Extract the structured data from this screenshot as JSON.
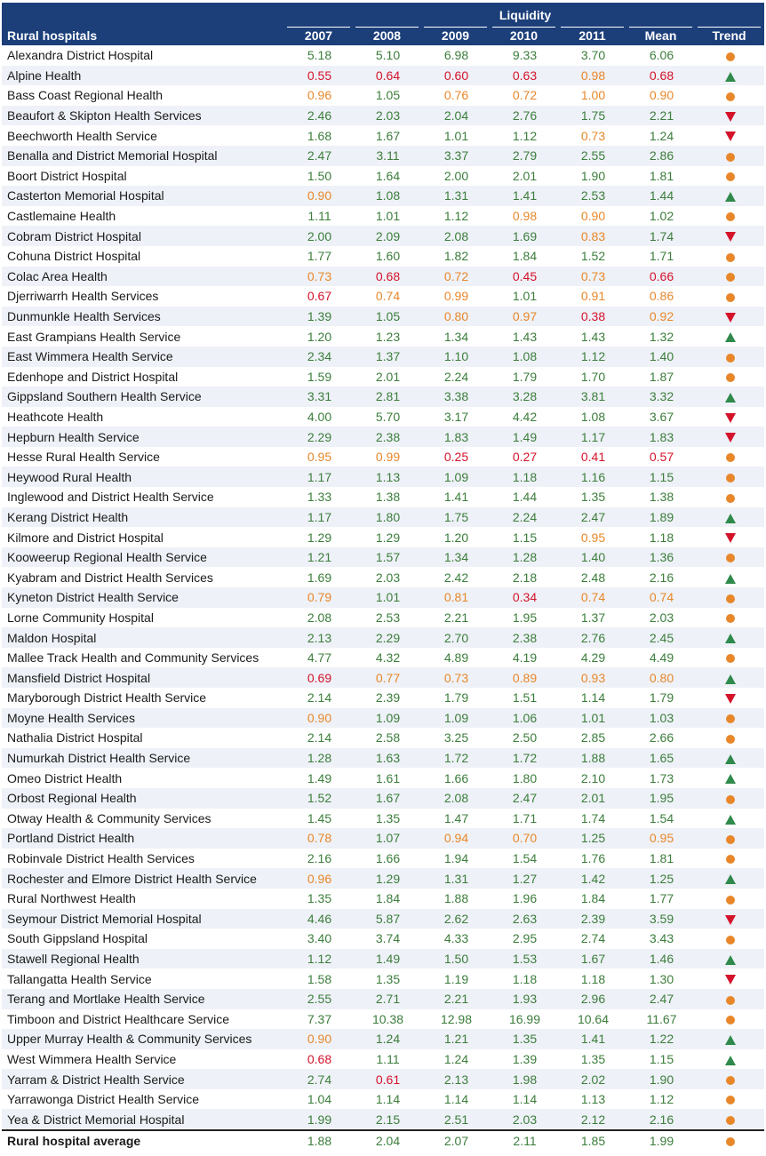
{
  "table": {
    "group_header": "Liquidity",
    "columns": [
      "Rural hospitals",
      "2007",
      "2008",
      "2009",
      "2010",
      "2011",
      "Mean",
      "Trend"
    ],
    "colors": {
      "green": "#3b7d3b",
      "orange": "#e8872a",
      "red": "#d4132b",
      "header_bg": "#1c3f7a"
    },
    "rows": [
      {
        "name": "Alexandra District Hospital",
        "values": [
          "5.18",
          "5.10",
          "6.98",
          "9.33",
          "3.70",
          "6.06"
        ],
        "colors": [
          "g",
          "g",
          "g",
          "g",
          "g",
          "g"
        ],
        "trend": "dot"
      },
      {
        "name": "Alpine Health",
        "values": [
          "0.55",
          "0.64",
          "0.60",
          "0.63",
          "0.98",
          "0.68"
        ],
        "colors": [
          "r",
          "r",
          "r",
          "r",
          "o",
          "r"
        ],
        "trend": "up"
      },
      {
        "name": "Bass Coast Regional Health",
        "values": [
          "0.96",
          "1.05",
          "0.76",
          "0.72",
          "1.00",
          "0.90"
        ],
        "colors": [
          "o",
          "g",
          "o",
          "o",
          "o",
          "o"
        ],
        "trend": "dot"
      },
      {
        "name": "Beaufort & Skipton Health Services",
        "values": [
          "2.46",
          "2.03",
          "2.04",
          "2.76",
          "1.75",
          "2.21"
        ],
        "colors": [
          "g",
          "g",
          "g",
          "g",
          "g",
          "g"
        ],
        "trend": "down"
      },
      {
        "name": "Beechworth Health Service",
        "values": [
          "1.68",
          "1.67",
          "1.01",
          "1.12",
          "0.73",
          "1.24"
        ],
        "colors": [
          "g",
          "g",
          "g",
          "g",
          "o",
          "g"
        ],
        "trend": "down"
      },
      {
        "name": "Benalla and District Memorial Hospital",
        "values": [
          "2.47",
          "3.11",
          "3.37",
          "2.79",
          "2.55",
          "2.86"
        ],
        "colors": [
          "g",
          "g",
          "g",
          "g",
          "g",
          "g"
        ],
        "trend": "dot"
      },
      {
        "name": "Boort District Hospital",
        "values": [
          "1.50",
          "1.64",
          "2.00",
          "2.01",
          "1.90",
          "1.81"
        ],
        "colors": [
          "g",
          "g",
          "g",
          "g",
          "g",
          "g"
        ],
        "trend": "dot"
      },
      {
        "name": "Casterton Memorial Hospital",
        "values": [
          "0.90",
          "1.08",
          "1.31",
          "1.41",
          "2.53",
          "1.44"
        ],
        "colors": [
          "o",
          "g",
          "g",
          "g",
          "g",
          "g"
        ],
        "trend": "up"
      },
      {
        "name": "Castlemaine Health",
        "values": [
          "1.11",
          "1.01",
          "1.12",
          "0.98",
          "0.90",
          "1.02"
        ],
        "colors": [
          "g",
          "g",
          "g",
          "o",
          "o",
          "g"
        ],
        "trend": "dot"
      },
      {
        "name": "Cobram District Hospital",
        "values": [
          "2.00",
          "2.09",
          "2.08",
          "1.69",
          "0.83",
          "1.74"
        ],
        "colors": [
          "g",
          "g",
          "g",
          "g",
          "o",
          "g"
        ],
        "trend": "down"
      },
      {
        "name": "Cohuna District Hospital",
        "values": [
          "1.77",
          "1.60",
          "1.82",
          "1.84",
          "1.52",
          "1.71"
        ],
        "colors": [
          "g",
          "g",
          "g",
          "g",
          "g",
          "g"
        ],
        "trend": "dot"
      },
      {
        "name": "Colac Area Health",
        "values": [
          "0.73",
          "0.68",
          "0.72",
          "0.45",
          "0.73",
          "0.66"
        ],
        "colors": [
          "o",
          "r",
          "o",
          "r",
          "o",
          "r"
        ],
        "trend": "dot"
      },
      {
        "name": "Djerriwarrh Health Services",
        "values": [
          "0.67",
          "0.74",
          "0.99",
          "1.01",
          "0.91",
          "0.86"
        ],
        "colors": [
          "r",
          "o",
          "o",
          "g",
          "o",
          "o"
        ],
        "trend": "dot"
      },
      {
        "name": "Dunmunkle Health Services",
        "values": [
          "1.39",
          "1.05",
          "0.80",
          "0.97",
          "0.38",
          "0.92"
        ],
        "colors": [
          "g",
          "g",
          "o",
          "o",
          "r",
          "o"
        ],
        "trend": "down"
      },
      {
        "name": "East Grampians Health Service",
        "values": [
          "1.20",
          "1.23",
          "1.34",
          "1.43",
          "1.43",
          "1.32"
        ],
        "colors": [
          "g",
          "g",
          "g",
          "g",
          "g",
          "g"
        ],
        "trend": "up"
      },
      {
        "name": "East Wimmera Health Service",
        "values": [
          "2.34",
          "1.37",
          "1.10",
          "1.08",
          "1.12",
          "1.40"
        ],
        "colors": [
          "g",
          "g",
          "g",
          "g",
          "g",
          "g"
        ],
        "trend": "dot"
      },
      {
        "name": "Edenhope and District Hospital",
        "values": [
          "1.59",
          "2.01",
          "2.24",
          "1.79",
          "1.70",
          "1.87"
        ],
        "colors": [
          "g",
          "g",
          "g",
          "g",
          "g",
          "g"
        ],
        "trend": "dot"
      },
      {
        "name": "Gippsland Southern Health Service",
        "values": [
          "3.31",
          "2.81",
          "3.38",
          "3.28",
          "3.81",
          "3.32"
        ],
        "colors": [
          "g",
          "g",
          "g",
          "g",
          "g",
          "g"
        ],
        "trend": "up"
      },
      {
        "name": "Heathcote Health",
        "values": [
          "4.00",
          "5.70",
          "3.17",
          "4.42",
          "1.08",
          "3.67"
        ],
        "colors": [
          "g",
          "g",
          "g",
          "g",
          "g",
          "g"
        ],
        "trend": "down"
      },
      {
        "name": "Hepburn Health Service",
        "values": [
          "2.29",
          "2.38",
          "1.83",
          "1.49",
          "1.17",
          "1.83"
        ],
        "colors": [
          "g",
          "g",
          "g",
          "g",
          "g",
          "g"
        ],
        "trend": "down"
      },
      {
        "name": "Hesse Rural Health Service",
        "values": [
          "0.95",
          "0.99",
          "0.25",
          "0.27",
          "0.41",
          "0.57"
        ],
        "colors": [
          "o",
          "o",
          "r",
          "r",
          "r",
          "r"
        ],
        "trend": "dot"
      },
      {
        "name": "Heywood Rural Health",
        "values": [
          "1.17",
          "1.13",
          "1.09",
          "1.18",
          "1.16",
          "1.15"
        ],
        "colors": [
          "g",
          "g",
          "g",
          "g",
          "g",
          "g"
        ],
        "trend": "dot"
      },
      {
        "name": "Inglewood and District Health Service",
        "values": [
          "1.33",
          "1.38",
          "1.41",
          "1.44",
          "1.35",
          "1.38"
        ],
        "colors": [
          "g",
          "g",
          "g",
          "g",
          "g",
          "g"
        ],
        "trend": "dot"
      },
      {
        "name": "Kerang District Health",
        "values": [
          "1.17",
          "1.80",
          "1.75",
          "2.24",
          "2.47",
          "1.89"
        ],
        "colors": [
          "g",
          "g",
          "g",
          "g",
          "g",
          "g"
        ],
        "trend": "up"
      },
      {
        "name": "Kilmore and District Hospital",
        "values": [
          "1.29",
          "1.29",
          "1.20",
          "1.15",
          "0.95",
          "1.18"
        ],
        "colors": [
          "g",
          "g",
          "g",
          "g",
          "o",
          "g"
        ],
        "trend": "down"
      },
      {
        "name": "Kooweerup Regional Health Service",
        "values": [
          "1.21",
          "1.57",
          "1.34",
          "1.28",
          "1.40",
          "1.36"
        ],
        "colors": [
          "g",
          "g",
          "g",
          "g",
          "g",
          "g"
        ],
        "trend": "dot"
      },
      {
        "name": "Kyabram and District Health Services",
        "values": [
          "1.69",
          "2.03",
          "2.42",
          "2.18",
          "2.48",
          "2.16"
        ],
        "colors": [
          "g",
          "g",
          "g",
          "g",
          "g",
          "g"
        ],
        "trend": "up"
      },
      {
        "name": "Kyneton District Health Service",
        "values": [
          "0.79",
          "1.01",
          "0.81",
          "0.34",
          "0.74",
          "0.74"
        ],
        "colors": [
          "o",
          "g",
          "o",
          "r",
          "o",
          "o"
        ],
        "trend": "dot"
      },
      {
        "name": "Lorne Community Hospital",
        "values": [
          "2.08",
          "2.53",
          "2.21",
          "1.95",
          "1.37",
          "2.03"
        ],
        "colors": [
          "g",
          "g",
          "g",
          "g",
          "g",
          "g"
        ],
        "trend": "dot"
      },
      {
        "name": "Maldon Hospital",
        "values": [
          "2.13",
          "2.29",
          "2.70",
          "2.38",
          "2.76",
          "2.45"
        ],
        "colors": [
          "g",
          "g",
          "g",
          "g",
          "g",
          "g"
        ],
        "trend": "up"
      },
      {
        "name": "Mallee Track Health and Community Services",
        "values": [
          "4.77",
          "4.32",
          "4.89",
          "4.19",
          "4.29",
          "4.49"
        ],
        "colors": [
          "g",
          "g",
          "g",
          "g",
          "g",
          "g"
        ],
        "trend": "dot"
      },
      {
        "name": "Mansfield District Hospital",
        "values": [
          "0.69",
          "0.77",
          "0.73",
          "0.89",
          "0.93",
          "0.80"
        ],
        "colors": [
          "r",
          "o",
          "o",
          "o",
          "o",
          "o"
        ],
        "trend": "up"
      },
      {
        "name": "Maryborough District Health Service",
        "values": [
          "2.14",
          "2.39",
          "1.79",
          "1.51",
          "1.14",
          "1.79"
        ],
        "colors": [
          "g",
          "g",
          "g",
          "g",
          "g",
          "g"
        ],
        "trend": "down"
      },
      {
        "name": "Moyne Health Services",
        "values": [
          "0.90",
          "1.09",
          "1.09",
          "1.06",
          "1.01",
          "1.03"
        ],
        "colors": [
          "o",
          "g",
          "g",
          "g",
          "g",
          "g"
        ],
        "trend": "dot"
      },
      {
        "name": "Nathalia District Hospital",
        "values": [
          "2.14",
          "2.58",
          "3.25",
          "2.50",
          "2.85",
          "2.66"
        ],
        "colors": [
          "g",
          "g",
          "g",
          "g",
          "g",
          "g"
        ],
        "trend": "dot"
      },
      {
        "name": "Numurkah District Health Service",
        "values": [
          "1.28",
          "1.63",
          "1.72",
          "1.72",
          "1.88",
          "1.65"
        ],
        "colors": [
          "g",
          "g",
          "g",
          "g",
          "g",
          "g"
        ],
        "trend": "up"
      },
      {
        "name": "Omeo District Health",
        "values": [
          "1.49",
          "1.61",
          "1.66",
          "1.80",
          "2.10",
          "1.73"
        ],
        "colors": [
          "g",
          "g",
          "g",
          "g",
          "g",
          "g"
        ],
        "trend": "up"
      },
      {
        "name": "Orbost Regional Health",
        "values": [
          "1.52",
          "1.67",
          "2.08",
          "2.47",
          "2.01",
          "1.95"
        ],
        "colors": [
          "g",
          "g",
          "g",
          "g",
          "g",
          "g"
        ],
        "trend": "dot"
      },
      {
        "name": "Otway Health & Community Services",
        "values": [
          "1.45",
          "1.35",
          "1.47",
          "1.71",
          "1.74",
          "1.54"
        ],
        "colors": [
          "g",
          "g",
          "g",
          "g",
          "g",
          "g"
        ],
        "trend": "up"
      },
      {
        "name": "Portland District Health",
        "values": [
          "0.78",
          "1.07",
          "0.94",
          "0.70",
          "1.25",
          "0.95"
        ],
        "colors": [
          "o",
          "g",
          "o",
          "o",
          "g",
          "o"
        ],
        "trend": "dot"
      },
      {
        "name": "Robinvale District Health Services",
        "values": [
          "2.16",
          "1.66",
          "1.94",
          "1.54",
          "1.76",
          "1.81"
        ],
        "colors": [
          "g",
          "g",
          "g",
          "g",
          "g",
          "g"
        ],
        "trend": "dot"
      },
      {
        "name": "Rochester and Elmore District Health Service",
        "values": [
          "0.96",
          "1.29",
          "1.31",
          "1.27",
          "1.42",
          "1.25"
        ],
        "colors": [
          "o",
          "g",
          "g",
          "g",
          "g",
          "g"
        ],
        "trend": "up"
      },
      {
        "name": "Rural Northwest Health",
        "values": [
          "1.35",
          "1.84",
          "1.88",
          "1.96",
          "1.84",
          "1.77"
        ],
        "colors": [
          "g",
          "g",
          "g",
          "g",
          "g",
          "g"
        ],
        "trend": "dot"
      },
      {
        "name": "Seymour District Memorial Hospital",
        "values": [
          "4.46",
          "5.87",
          "2.62",
          "2.63",
          "2.39",
          "3.59"
        ],
        "colors": [
          "g",
          "g",
          "g",
          "g",
          "g",
          "g"
        ],
        "trend": "down"
      },
      {
        "name": "South Gippsland Hospital",
        "values": [
          "3.40",
          "3.74",
          "4.33",
          "2.95",
          "2.74",
          "3.43"
        ],
        "colors": [
          "g",
          "g",
          "g",
          "g",
          "g",
          "g"
        ],
        "trend": "dot"
      },
      {
        "name": "Stawell Regional Health",
        "values": [
          "1.12",
          "1.49",
          "1.50",
          "1.53",
          "1.67",
          "1.46"
        ],
        "colors": [
          "g",
          "g",
          "g",
          "g",
          "g",
          "g"
        ],
        "trend": "up"
      },
      {
        "name": "Tallangatta Health Service",
        "values": [
          "1.58",
          "1.35",
          "1.19",
          "1.18",
          "1.18",
          "1.30"
        ],
        "colors": [
          "g",
          "g",
          "g",
          "g",
          "g",
          "g"
        ],
        "trend": "down"
      },
      {
        "name": "Terang and Mortlake Health Service",
        "values": [
          "2.55",
          "2.71",
          "2.21",
          "1.93",
          "2.96",
          "2.47"
        ],
        "colors": [
          "g",
          "g",
          "g",
          "g",
          "g",
          "g"
        ],
        "trend": "dot"
      },
      {
        "name": "Timboon and District Healthcare Service",
        "values": [
          "7.37",
          "10.38",
          "12.98",
          "16.99",
          "10.64",
          "11.67"
        ],
        "colors": [
          "g",
          "g",
          "g",
          "g",
          "g",
          "g"
        ],
        "trend": "dot"
      },
      {
        "name": "Upper Murray Health & Community Services",
        "values": [
          "0.90",
          "1.24",
          "1.21",
          "1.35",
          "1.41",
          "1.22"
        ],
        "colors": [
          "o",
          "g",
          "g",
          "g",
          "g",
          "g"
        ],
        "trend": "up"
      },
      {
        "name": "West Wimmera Health Service",
        "values": [
          "0.68",
          "1.11",
          "1.24",
          "1.39",
          "1.35",
          "1.15"
        ],
        "colors": [
          "r",
          "g",
          "g",
          "g",
          "g",
          "g"
        ],
        "trend": "up"
      },
      {
        "name": "Yarram & District Health Service",
        "values": [
          "2.74",
          "0.61",
          "2.13",
          "1.98",
          "2.02",
          "1.90"
        ],
        "colors": [
          "g",
          "r",
          "g",
          "g",
          "g",
          "g"
        ],
        "trend": "dot"
      },
      {
        "name": "Yarrawonga District Health Service",
        "values": [
          "1.04",
          "1.14",
          "1.14",
          "1.14",
          "1.13",
          "1.12"
        ],
        "colors": [
          "g",
          "g",
          "g",
          "g",
          "g",
          "g"
        ],
        "trend": "dot"
      },
      {
        "name": "Yea & District Memorial Hospital",
        "values": [
          "1.99",
          "2.15",
          "2.51",
          "2.03",
          "2.12",
          "2.16"
        ],
        "colors": [
          "g",
          "g",
          "g",
          "g",
          "g",
          "g"
        ],
        "trend": "dot"
      }
    ],
    "average": {
      "name": "Rural hospital average",
      "values": [
        "1.88",
        "2.04",
        "2.07",
        "2.11",
        "1.85",
        "1.99"
      ],
      "colors": [
        "g",
        "g",
        "g",
        "g",
        "g",
        "g"
      ],
      "trend": "dot"
    }
  }
}
